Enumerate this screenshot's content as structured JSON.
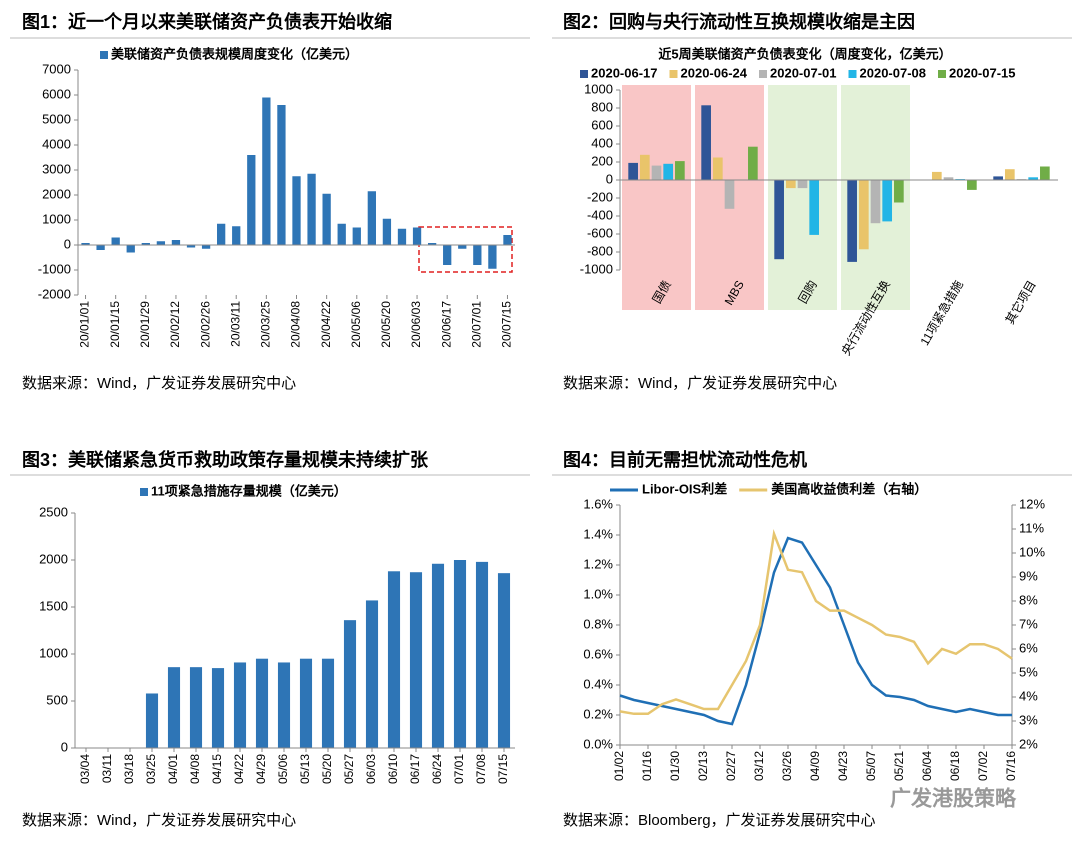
{
  "chart_data": [
    {
      "type": "bar",
      "title": "图1：近一个月以来美联储资产负债表开始收缩",
      "source": "数据来源：Wind，广发证券发展研究中心",
      "categories": [
        "20/01/01",
        null,
        "20/01/15",
        null,
        "20/01/29",
        null,
        "20/02/12",
        null,
        "20/02/26",
        null,
        "20/03/11",
        null,
        "20/03/25",
        null,
        "20/04/08",
        null,
        "20/04/22",
        null,
        "20/05/06",
        null,
        "20/05/20",
        null,
        "20/06/03",
        null,
        "20/06/17",
        null,
        "20/07/01",
        null,
        "20/07/15"
      ],
      "series": [
        {
          "name": "美联储资产负债表规模周度变化（亿美元）",
          "color": "#2e75b6",
          "values": [
            80,
            -200,
            300,
            -300,
            80,
            150,
            200,
            -100,
            -150,
            850,
            750,
            3600,
            5900,
            5600,
            2750,
            2850,
            2050,
            850,
            700,
            2150,
            1050,
            650,
            700,
            80,
            -800,
            -150,
            -800,
            -950,
            400
          ]
        }
      ],
      "ylim": [
        -2000,
        7000
      ],
      "yticks": [
        -2000,
        -1000,
        0,
        1000,
        2000,
        3000,
        4000,
        5000,
        6000,
        7000
      ]
    },
    {
      "type": "bar",
      "title": "图2：回购与央行流动性互换规模收缩是主因",
      "subtitle": "近5周美联储资产负债表变化（周度变化，亿美元）",
      "source": "数据来源：Wind，广发证券发展研究中心",
      "categories": [
        "国债",
        "MBS",
        "回购",
        "央行流动性互换",
        "11项紧急措施",
        "其它项目"
      ],
      "category_backgrounds": [
        "#f9c6c6",
        "#f9c6c6",
        "#e3f1d8",
        "#e3f1d8",
        null,
        null
      ],
      "series": [
        {
          "name": "2020-06-17",
          "color": "#2f5597",
          "values": [
            190,
            830,
            -880,
            -910,
            0,
            40
          ]
        },
        {
          "name": "2020-06-24",
          "color": "#e9c46a",
          "values": [
            280,
            250,
            -90,
            -770,
            90,
            120
          ]
        },
        {
          "name": "2020-07-01",
          "color": "#b4b4b4",
          "values": [
            160,
            -320,
            -90,
            -480,
            30,
            10
          ]
        },
        {
          "name": "2020-07-08",
          "color": "#22b5e6",
          "values": [
            180,
            0,
            -610,
            -460,
            10,
            30
          ]
        },
        {
          "name": "2020-07-15",
          "color": "#70ad47",
          "values": [
            210,
            370,
            0,
            -250,
            -110,
            150
          ]
        }
      ],
      "ylim": [
        -1000,
        1000
      ],
      "yticks": [
        -1000,
        -800,
        -600,
        -400,
        -200,
        0,
        200,
        400,
        600,
        800,
        1000
      ]
    },
    {
      "type": "bar",
      "title": "图3：美联储紧急货币救助政策存量规模未持续扩张",
      "source": "数据来源：Wind，广发证券发展研究中心",
      "categories": [
        "03/04",
        "03/11",
        "03/18",
        "03/25",
        "04/01",
        "04/08",
        "04/15",
        "04/22",
        "04/29",
        "05/06",
        "05/13",
        "05/20",
        "05/27",
        "06/03",
        "06/10",
        "06/17",
        "06/24",
        "07/01",
        "07/08",
        "07/15"
      ],
      "series": [
        {
          "name": "11项紧急措施存量规模（亿美元）",
          "color": "#2e75b6",
          "values": [
            0,
            0,
            0,
            580,
            860,
            860,
            850,
            910,
            950,
            910,
            950,
            950,
            1360,
            1570,
            1880,
            1870,
            1960,
            2000,
            1980,
            1860
          ]
        }
      ],
      "ylim": [
        0,
        2500
      ],
      "yticks": [
        0,
        500,
        1000,
        1500,
        2000,
        2500
      ]
    },
    {
      "type": "line",
      "title": "图4：目前无需担忧流动性危机",
      "source": "数据来源：Bloomberg，广发证券发展研究中心",
      "categories": [
        "01/02",
        null,
        "01/16",
        null,
        "01/30",
        null,
        "02/13",
        null,
        "02/27",
        null,
        "03/12",
        null,
        "03/26",
        null,
        "04/09",
        null,
        "04/23",
        null,
        "05/07",
        null,
        "05/21",
        null,
        "06/04",
        null,
        "06/18",
        null,
        "07/02",
        null,
        "07/16"
      ],
      "series": [
        {
          "name": "Libor-OIS利差",
          "color": "#1f6fb5",
          "values": [
            0.33,
            0.3,
            0.28,
            0.26,
            0.24,
            0.22,
            0.2,
            0.16,
            0.14,
            0.4,
            0.75,
            1.15,
            1.38,
            1.35,
            1.2,
            1.05,
            0.8,
            0.55,
            0.4,
            0.33,
            0.32,
            0.3,
            0.26,
            0.24,
            0.22,
            0.24,
            0.22,
            0.2,
            0.2
          ]
        },
        {
          "name": "美国高收益债利差（右轴）",
          "color": "#e6c56f",
          "axis": "y2",
          "values": [
            3.4,
            3.3,
            3.3,
            3.7,
            3.9,
            3.7,
            3.5,
            3.5,
            4.5,
            5.5,
            7.0,
            10.8,
            9.3,
            9.2,
            8.0,
            7.6,
            7.6,
            7.3,
            7.0,
            6.6,
            6.5,
            6.3,
            5.4,
            6.0,
            5.8,
            6.2,
            6.2,
            6.0,
            5.6
          ]
        }
      ],
      "ylim": [
        0,
        1.6
      ],
      "yticks": [
        {
          "value": 0,
          "label": "0.0%"
        },
        {
          "value": 0.2,
          "label": "0.2%"
        },
        {
          "value": 0.4,
          "label": "0.4%"
        },
        {
          "value": 0.6,
          "label": "0.6%"
        },
        {
          "value": 0.8,
          "label": "0.8%"
        },
        {
          "value": 1.0,
          "label": "1.0%"
        },
        {
          "value": 1.2,
          "label": "1.2%"
        },
        {
          "value": 1.4,
          "label": "1.4%"
        },
        {
          "value": 1.6,
          "label": "1.6%"
        }
      ],
      "y2lim": [
        2,
        12
      ],
      "y2ticks": [
        {
          "value": 2,
          "label": "2%"
        },
        {
          "value": 3,
          "label": "3%"
        },
        {
          "value": 4,
          "label": "4%"
        },
        {
          "value": 5,
          "label": "5%"
        },
        {
          "value": 6,
          "label": "6%"
        },
        {
          "value": 7,
          "label": "7%"
        },
        {
          "value": 8,
          "label": "8%"
        },
        {
          "value": 9,
          "label": "9%"
        },
        {
          "value": 10,
          "label": "10%"
        },
        {
          "value": 11,
          "label": "11%"
        },
        {
          "value": 12,
          "label": "12%"
        }
      ]
    }
  ],
  "watermark": "广发港股策略"
}
